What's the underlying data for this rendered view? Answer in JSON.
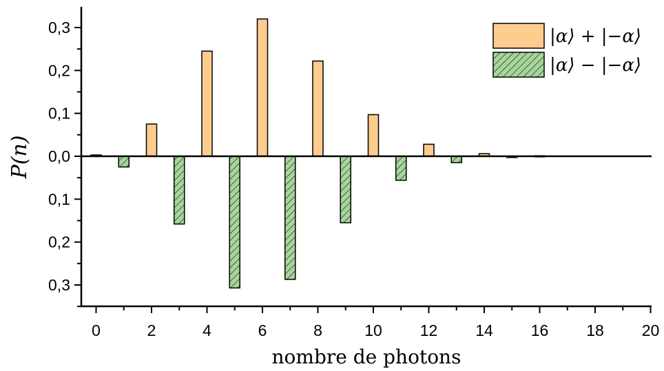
{
  "chart_data": {
    "type": "bar",
    "xlabel": "nombre de photons",
    "ylabel": "P(n)",
    "xlim": [
      -0.5,
      20
    ],
    "ylim": [
      -0.35,
      0.35
    ],
    "x_ticks": [
      "0",
      "2",
      "4",
      "6",
      "8",
      "10",
      "12",
      "14",
      "16",
      "18",
      "20"
    ],
    "y_ticks": [
      {
        "value": 0.3,
        "label": "0,3"
      },
      {
        "value": 0.2,
        "label": "0,2"
      },
      {
        "value": 0.1,
        "label": "0,1"
      },
      {
        "value": 0.0,
        "label": "0,0"
      },
      {
        "value": -0.1,
        "label": "0,1"
      },
      {
        "value": -0.2,
        "label": "0,2"
      },
      {
        "value": -0.3,
        "label": "0,3"
      }
    ],
    "grid": false,
    "legend_position": "top-right",
    "series": [
      {
        "name": "|α⟩ + |−α⟩",
        "color": "#FFCC8F",
        "pattern": "solid",
        "x": [
          0,
          2,
          4,
          6,
          8,
          10,
          12,
          14,
          16
        ],
        "values": [
          0.003,
          0.075,
          0.245,
          0.32,
          0.222,
          0.097,
          0.028,
          0.006,
          0.001
        ]
      },
      {
        "name": "|α⟩ − |−α⟩",
        "color": "#A6D69A",
        "pattern": "hatched",
        "x": [
          1,
          3,
          5,
          7,
          9,
          11,
          13,
          15
        ],
        "values": [
          -0.025,
          -0.158,
          -0.307,
          -0.287,
          -0.155,
          -0.056,
          -0.015,
          -0.003
        ]
      }
    ]
  }
}
